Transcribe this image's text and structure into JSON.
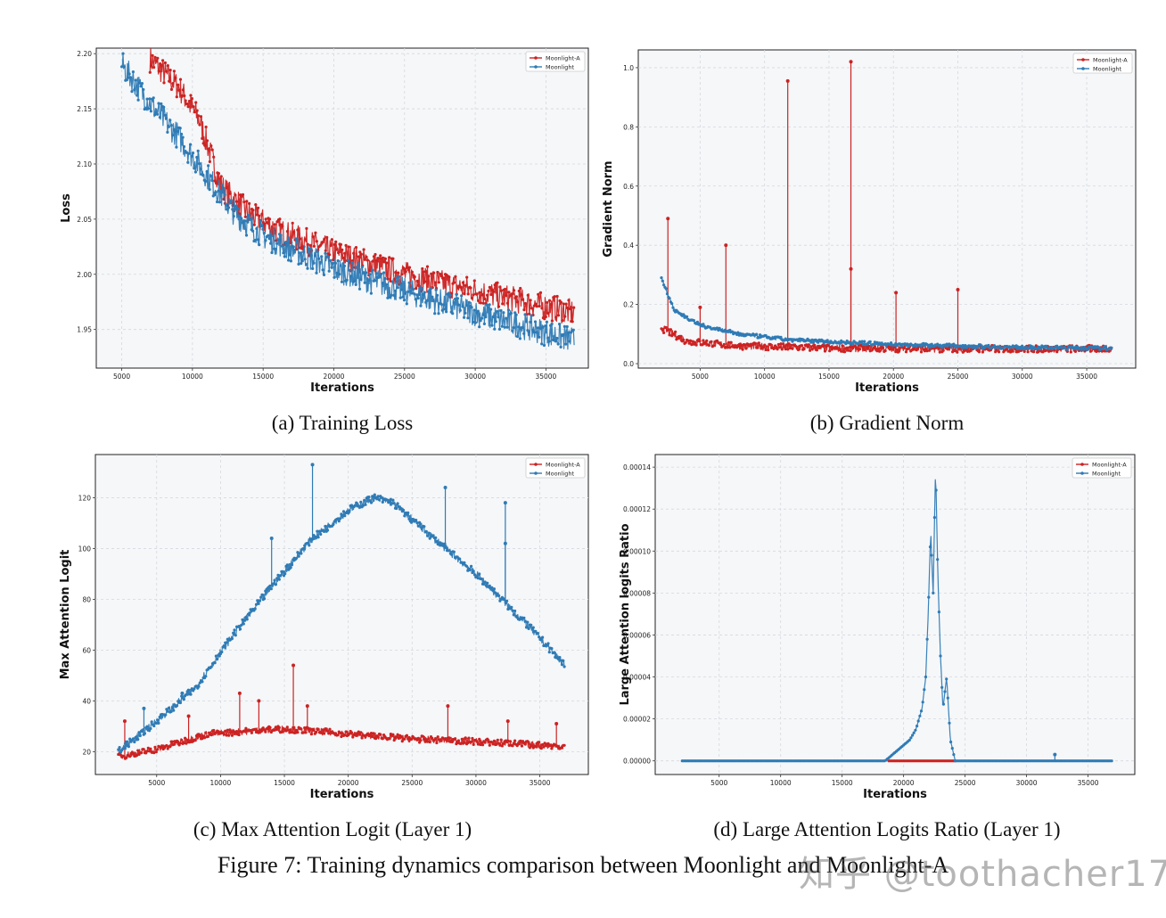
{
  "colors": {
    "a": "#cc2222",
    "b": "#2f7bb5",
    "grid": "#d5d9de",
    "panel": "#f5f7f9"
  },
  "legend": [
    "Moonlight-A",
    "Moonlight"
  ],
  "figure_caption": "Figure 7: Training dynamics comparison between Moonlight and Moonlight-A",
  "watermark": "知乎 @toothacher17",
  "chart_data": [
    {
      "id": "a",
      "type": "line",
      "caption": "(a) Training Loss",
      "xlabel": "Iterations",
      "ylabel": "Loss",
      "xlim": [
        3200,
        38000
      ],
      "ylim": [
        1.915,
        2.205
      ],
      "xticks": [
        5000,
        10000,
        15000,
        20000,
        25000,
        30000,
        35000
      ],
      "yticks": [
        1.95,
        2.0,
        2.05,
        2.1,
        2.15,
        2.2
      ],
      "ytick_labels": [
        "1.95",
        "2.00",
        "2.05",
        "2.10",
        "2.15",
        "2.20"
      ],
      "series": [
        {
          "name": "Moonlight-A",
          "noise": 0.012,
          "spikes": [],
          "points": [
            [
              7000,
              2.195
            ],
            [
              9000,
              2.17
            ],
            [
              10500,
              2.14
            ],
            [
              11000,
              2.12
            ],
            [
              12000,
              2.08
            ],
            [
              14000,
              2.055
            ],
            [
              16000,
              2.04
            ],
            [
              20000,
              2.02
            ],
            [
              25000,
              2.0
            ],
            [
              30000,
              1.985
            ],
            [
              37000,
              1.965
            ]
          ]
        },
        {
          "name": "Moonlight",
          "noise": 0.012,
          "spikes": [],
          "points": [
            [
              5000,
              2.19
            ],
            [
              7000,
              2.155
            ],
            [
              9000,
              2.125
            ],
            [
              11000,
              2.09
            ],
            [
              13000,
              2.055
            ],
            [
              15000,
              2.035
            ],
            [
              20000,
              2.005
            ],
            [
              25000,
              1.985
            ],
            [
              30000,
              1.965
            ],
            [
              37000,
              1.94
            ]
          ]
        }
      ]
    },
    {
      "id": "b",
      "type": "line",
      "caption": "(b) Gradient Norm",
      "xlabel": "Iterations",
      "ylabel": "Gradient Norm",
      "xlim": [
        200,
        38800
      ],
      "ylim": [
        -0.015,
        1.06
      ],
      "xticks": [
        5000,
        10000,
        15000,
        20000,
        25000,
        30000,
        35000
      ],
      "yticks": [
        0,
        0.2,
        0.4,
        0.6,
        0.8,
        1.0
      ],
      "ytick_labels": [
        "0.0",
        "0.2",
        "0.4",
        "0.6",
        "0.8",
        "1.0"
      ],
      "series": [
        {
          "name": "Moonlight-A",
          "noise": 0.012,
          "spikes": [
            [
              2500,
              0.49
            ],
            [
              5000,
              0.19
            ],
            [
              7000,
              0.4
            ],
            [
              11800,
              0.955
            ],
            [
              16700,
              1.02
            ],
            [
              16700,
              0.32
            ],
            [
              20200,
              0.24
            ],
            [
              25000,
              0.25
            ]
          ],
          "points": [
            [
              2000,
              0.12
            ],
            [
              4000,
              0.075
            ],
            [
              8000,
              0.06
            ],
            [
              15000,
              0.052
            ],
            [
              25000,
              0.05
            ],
            [
              37000,
              0.05
            ]
          ]
        },
        {
          "name": "Moonlight",
          "noise": 0.006,
          "spikes": [],
          "points": [
            [
              2000,
              0.29
            ],
            [
              3000,
              0.18
            ],
            [
              5000,
              0.13
            ],
            [
              8000,
              0.1
            ],
            [
              12000,
              0.08
            ],
            [
              20000,
              0.065
            ],
            [
              30000,
              0.055
            ],
            [
              37000,
              0.052
            ]
          ]
        }
      ]
    },
    {
      "id": "c",
      "type": "line",
      "caption": "(c) Max Attention Logit (Layer 1)",
      "xlabel": "Iterations",
      "ylabel": "Max Attention Logit",
      "xlim": [
        200,
        38800
      ],
      "ylim": [
        11,
        137
      ],
      "xticks": [
        5000,
        10000,
        15000,
        20000,
        25000,
        30000,
        35000
      ],
      "yticks": [
        20,
        40,
        60,
        80,
        100,
        120
      ],
      "ytick_labels": [
        "20",
        "40",
        "60",
        "80",
        "100",
        "120"
      ],
      "series": [
        {
          "name": "Moonlight-A",
          "noise": 1.3,
          "spikes": [
            [
              2500,
              32
            ],
            [
              7500,
              34
            ],
            [
              11500,
              43
            ],
            [
              13000,
              40
            ],
            [
              15700,
              54
            ],
            [
              16800,
              38
            ],
            [
              27800,
              38
            ],
            [
              32500,
              32
            ],
            [
              36300,
              31
            ]
          ],
          "points": [
            [
              2000,
              18
            ],
            [
              5000,
              21
            ],
            [
              9000,
              27
            ],
            [
              15000,
              29
            ],
            [
              20000,
              27
            ],
            [
              25000,
              25
            ],
            [
              30000,
              24
            ],
            [
              37000,
              22
            ]
          ]
        },
        {
          "name": "Moonlight",
          "noise": 1.5,
          "spikes": [
            [
              7000,
              43
            ],
            [
              14000,
              104
            ],
            [
              17200,
              133
            ],
            [
              27600,
              124
            ],
            [
              32300,
              118
            ],
            [
              32300,
              102
            ],
            [
              4000,
              37
            ]
          ],
          "points": [
            [
              2000,
              20
            ],
            [
              5000,
              32
            ],
            [
              8000,
              45
            ],
            [
              11000,
              66
            ],
            [
              14000,
              85
            ],
            [
              17000,
              103
            ],
            [
              20000,
              115
            ],
            [
              22000,
              120
            ],
            [
              23500,
              118
            ],
            [
              26000,
              107
            ],
            [
              30000,
              90
            ],
            [
              34000,
              70
            ],
            [
              37000,
              54
            ]
          ]
        }
      ]
    },
    {
      "id": "d",
      "type": "line",
      "caption": "(d) Large Attention Logits Ratio (Layer 1)",
      "xlabel": "Iterations",
      "ylabel": "Large Attention logits Ratio",
      "xlim": [
        -200,
        38800
      ],
      "ylim": [
        -6.5e-06,
        0.000146
      ],
      "xticks": [
        5000,
        10000,
        15000,
        20000,
        25000,
        30000,
        35000
      ],
      "yticks": [
        0,
        2e-05,
        4e-05,
        6e-05,
        8e-05,
        0.0001,
        0.00012,
        0.00014
      ],
      "ytick_labels": [
        "0.00000",
        "0.00002",
        "0.00004",
        "0.00006",
        "0.00008",
        "0.00010",
        "0.00012",
        "0.00014"
      ],
      "series": [
        {
          "name": "Moonlight-A",
          "noise": 0,
          "spikes": [],
          "points": [
            [
              18800,
              0
            ],
            [
              24300,
              0
            ]
          ]
        },
        {
          "name": "Moonlight",
          "noise": 0,
          "spikes": [
            [
              32300,
              3e-06
            ]
          ],
          "points": [
            [
              2000,
              0
            ],
            [
              18500,
              0
            ],
            [
              19500,
              5e-06
            ],
            [
              20500,
              1e-05
            ],
            [
              21000,
              1.5e-05
            ],
            [
              21500,
              2.5e-05
            ],
            [
              21800,
              4e-05
            ],
            [
              22000,
              7e-05
            ],
            [
              22200,
              0.00011
            ],
            [
              22400,
              8e-05
            ],
            [
              22600,
              0.00014
            ],
            [
              22800,
              8.5e-05
            ],
            [
              23000,
              5e-05
            ],
            [
              23200,
              2.5e-05
            ],
            [
              23500,
              4e-05
            ],
            [
              23800,
              1e-05
            ],
            [
              24200,
              0
            ],
            [
              37000,
              0
            ]
          ]
        }
      ]
    }
  ]
}
